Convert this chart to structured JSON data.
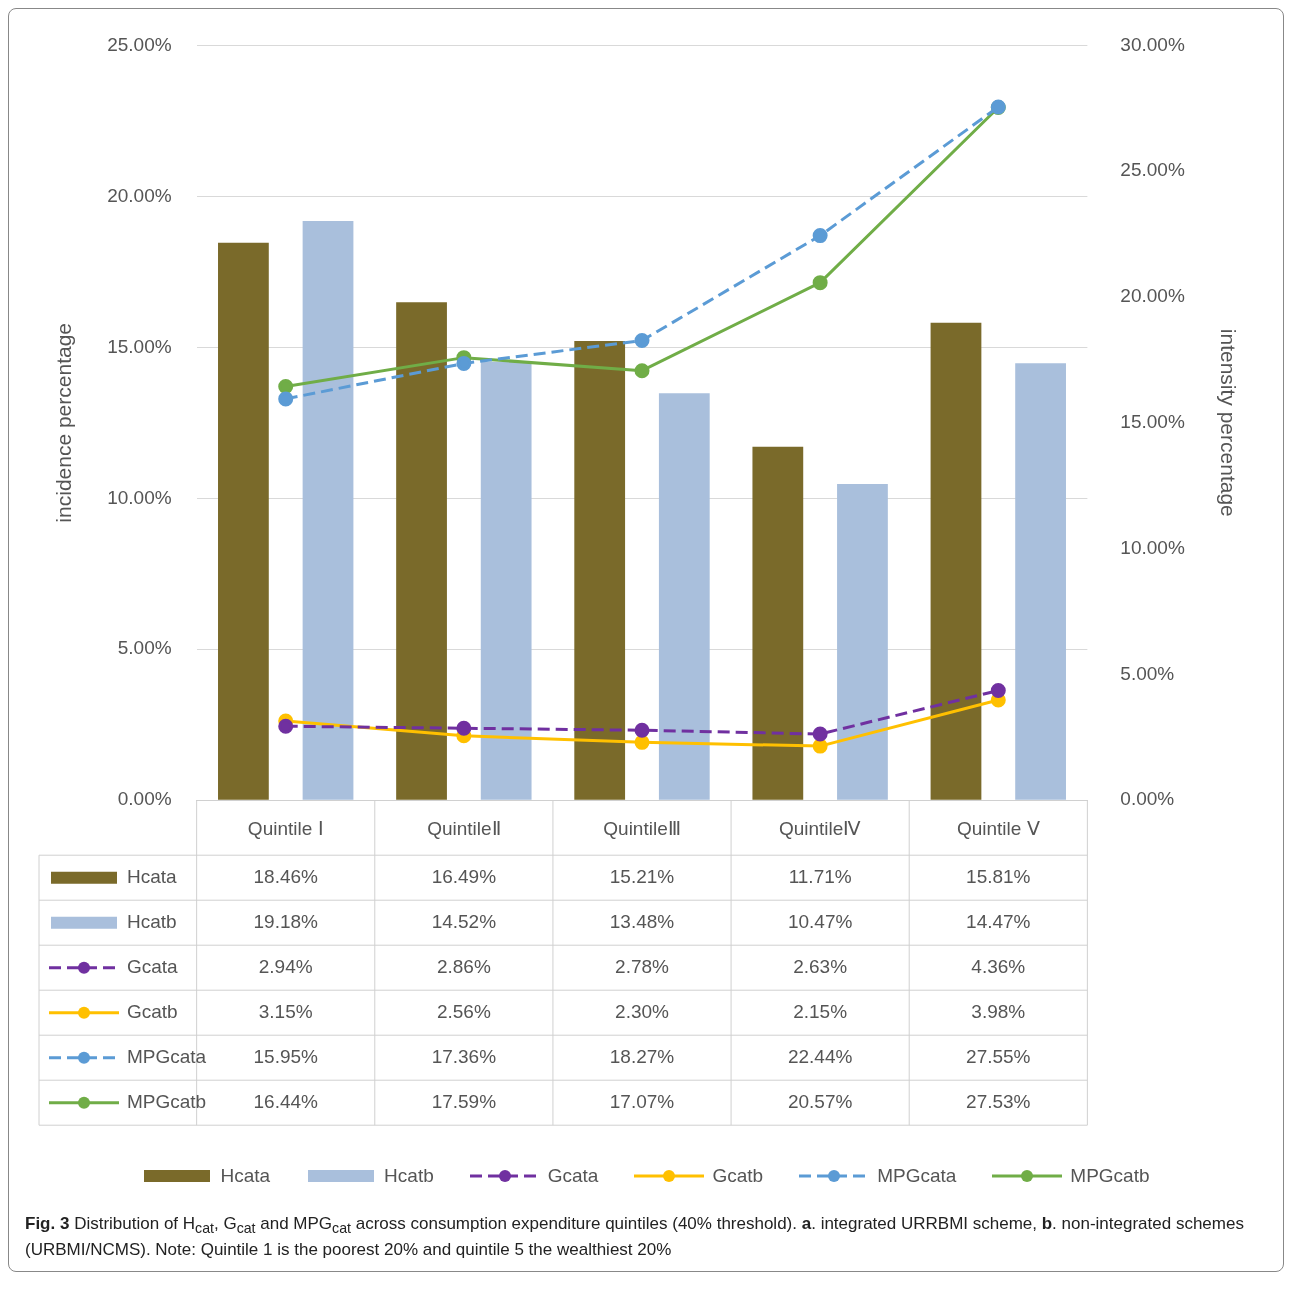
{
  "chart_data": {
    "type": "bar",
    "ylabel": "incidence percentage",
    "y2label": "intensity percentage",
    "categories": [
      "Quintile Ⅰ",
      "QuintileⅡ",
      "QuintileⅢ",
      "QuintileⅣ",
      "Quintile Ⅴ"
    ],
    "series": [
      {
        "name": "Hcata",
        "color": "#7a6a2a",
        "values": [
          18.46,
          16.49,
          15.21,
          11.71,
          15.81
        ],
        "value_labels": [
          "18.46%",
          "16.49%",
          "15.21%",
          "11.71%",
          "15.81%"
        ]
      },
      {
        "name": "Hcatb",
        "color": "#a9bfdc",
        "values": [
          19.18,
          14.52,
          13.48,
          10.47,
          14.47
        ],
        "value_labels": [
          "19.18%",
          "14.52%",
          "13.48%",
          "10.47%",
          "14.47%"
        ]
      },
      {
        "name": "Gcata",
        "type": "line",
        "axis": "y2",
        "line_style": "dashed",
        "color": "#7030a0",
        "values": [
          2.94,
          2.86,
          2.78,
          2.63,
          4.36
        ],
        "value_labels": [
          "2.94%",
          "2.86%",
          "2.78%",
          "2.63%",
          "4.36%"
        ]
      },
      {
        "name": "Gcatb",
        "type": "line",
        "axis": "y2",
        "line_style": "solid",
        "color": "#ffc000",
        "values": [
          3.15,
          2.56,
          2.3,
          2.15,
          3.98
        ],
        "value_labels": [
          "3.15%",
          "2.56%",
          "2.30%",
          "2.15%",
          "3.98%"
        ]
      },
      {
        "name": "MPGcata",
        "type": "line",
        "axis": "y2",
        "line_style": "dashed",
        "color": "#5b9bd5",
        "values": [
          15.95,
          17.36,
          18.27,
          22.44,
          27.55
        ],
        "value_labels": [
          "15.95%",
          "17.36%",
          "18.27%",
          "22.44%",
          "27.55%"
        ]
      },
      {
        "name": "MPGcatb",
        "type": "line",
        "axis": "y2",
        "line_style": "solid",
        "color": "#70ad47",
        "values": [
          16.44,
          17.59,
          17.07,
          20.57,
          27.53
        ],
        "value_labels": [
          "16.44%",
          "17.59%",
          "17.07%",
          "20.57%",
          "27.53%"
        ]
      }
    ],
    "ylim": [
      0,
      25
    ],
    "yticks": [
      {
        "value": 0,
        "label": "0.00%"
      },
      {
        "value": 5,
        "label": "5.00%"
      },
      {
        "value": 10,
        "label": "10.00%"
      },
      {
        "value": 15,
        "label": "15.00%"
      },
      {
        "value": 20,
        "label": "20.00%"
      },
      {
        "value": 25,
        "label": "25.00%"
      }
    ],
    "y2lim": [
      0,
      30
    ],
    "y2ticks": [
      {
        "value": 0,
        "label": "0.00%"
      },
      {
        "value": 5,
        "label": "5.00%"
      },
      {
        "value": 10,
        "label": "10.00%"
      },
      {
        "value": 15,
        "label": "15.00%"
      },
      {
        "value": 20,
        "label": "20.00%"
      },
      {
        "value": 25,
        "label": "25.00%"
      },
      {
        "value": 30,
        "label": "30.00%"
      }
    ],
    "grid": "y",
    "legend": "bottom",
    "marker": "circle",
    "annotations": [
      "**Fig. 3** Distribution of H$_{cat}$, G$_{cat}$ and MPG$_{cat}$ across consumption expenditure quintiles (40% threshold). **a**. integrated URRBMI scheme, **b**. non-integrated schemes (URBMI/NCMS). Note: Quintile 1 is the poorest 20% and quintile 5 the wealthiest 20%"
    ]
  }
}
